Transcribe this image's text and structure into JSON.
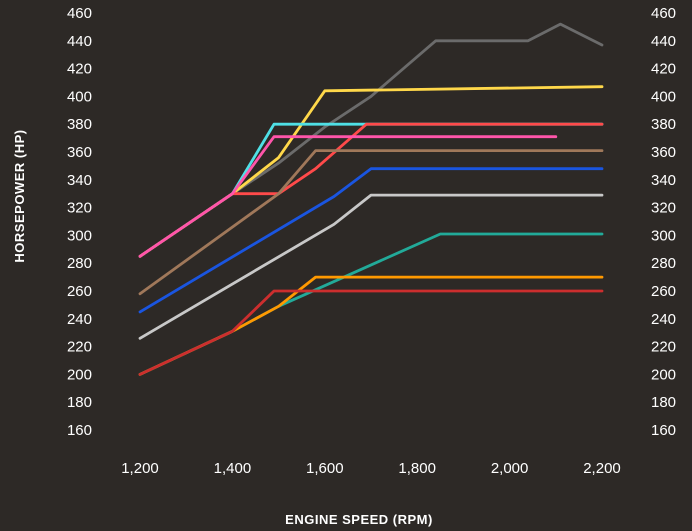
{
  "chart_data": {
    "type": "line",
    "title": "",
    "xlabel": "ENGINE SPEED (RPM)",
    "ylabel": "HORSEPOWER (HP)",
    "xlim": [
      1200,
      2200
    ],
    "ylim": [
      160,
      460
    ],
    "x_ticks": [
      1200,
      1400,
      1600,
      1800,
      2000,
      2200
    ],
    "x_tick_labels": [
      "1,200",
      "1,400",
      "1,600",
      "1,800",
      "2,000",
      "2,200"
    ],
    "y_ticks": [
      460,
      440,
      420,
      400,
      380,
      360,
      340,
      320,
      300,
      280,
      260,
      240,
      220,
      200,
      180,
      160
    ],
    "y_tick_labels": [
      "460",
      "440",
      "420",
      "400",
      "380",
      "360",
      "340",
      "320",
      "300",
      "280",
      "260",
      "240",
      "220",
      "200",
      "180",
      "160"
    ],
    "grid": false,
    "legend": false,
    "series": [
      {
        "color": "#6b6b6b",
        "points": [
          [
            1200,
            285
          ],
          [
            1400,
            330
          ],
          [
            1500,
            352
          ],
          [
            1600,
            378
          ],
          [
            1700,
            400
          ],
          [
            1840,
            440
          ],
          [
            2040,
            440
          ],
          [
            2110,
            452
          ],
          [
            2200,
            437
          ]
        ]
      },
      {
        "color": "#ffd84a",
        "points": [
          [
            1200,
            285
          ],
          [
            1400,
            330
          ],
          [
            1500,
            356
          ],
          [
            1600,
            404
          ],
          [
            2200,
            407
          ]
        ]
      },
      {
        "color": "#4fe0e6",
        "points": [
          [
            1200,
            285
          ],
          [
            1400,
            330
          ],
          [
            1490,
            380
          ],
          [
            2200,
            380
          ]
        ]
      },
      {
        "color": "#ff4a4a",
        "points": [
          [
            1200,
            285
          ],
          [
            1400,
            330
          ],
          [
            1500,
            330
          ],
          [
            1580,
            348
          ],
          [
            1690,
            380
          ],
          [
            2200,
            380
          ]
        ]
      },
      {
        "color": "#ff55aa",
        "points": [
          [
            1200,
            285
          ],
          [
            1400,
            330
          ],
          [
            1490,
            371
          ],
          [
            2100,
            371
          ]
        ]
      },
      {
        "color": "#a0785a",
        "points": [
          [
            1200,
            258
          ],
          [
            1500,
            330
          ],
          [
            1580,
            361
          ],
          [
            2200,
            361
          ]
        ]
      },
      {
        "color": "#1a55e0",
        "points": [
          [
            1200,
            245
          ],
          [
            1620,
            328
          ],
          [
            1700,
            348
          ],
          [
            2200,
            348
          ]
        ]
      },
      {
        "color": "#c8c8c8",
        "points": [
          [
            1200,
            226
          ],
          [
            1620,
            308
          ],
          [
            1700,
            329
          ],
          [
            2200,
            329
          ]
        ]
      },
      {
        "color": "#22aa99",
        "points": [
          [
            1200,
            200
          ],
          [
            1400,
            231
          ],
          [
            1500,
            249
          ],
          [
            1850,
            301
          ],
          [
            2200,
            301
          ]
        ]
      },
      {
        "color": "#ff9900",
        "points": [
          [
            1200,
            200
          ],
          [
            1400,
            231
          ],
          [
            1500,
            249
          ],
          [
            1580,
            270
          ],
          [
            2200,
            270
          ]
        ]
      },
      {
        "color": "#cc2e2e",
        "points": [
          [
            1200,
            200
          ],
          [
            1400,
            231
          ],
          [
            1490,
            260
          ],
          [
            2200,
            260
          ]
        ]
      }
    ]
  }
}
